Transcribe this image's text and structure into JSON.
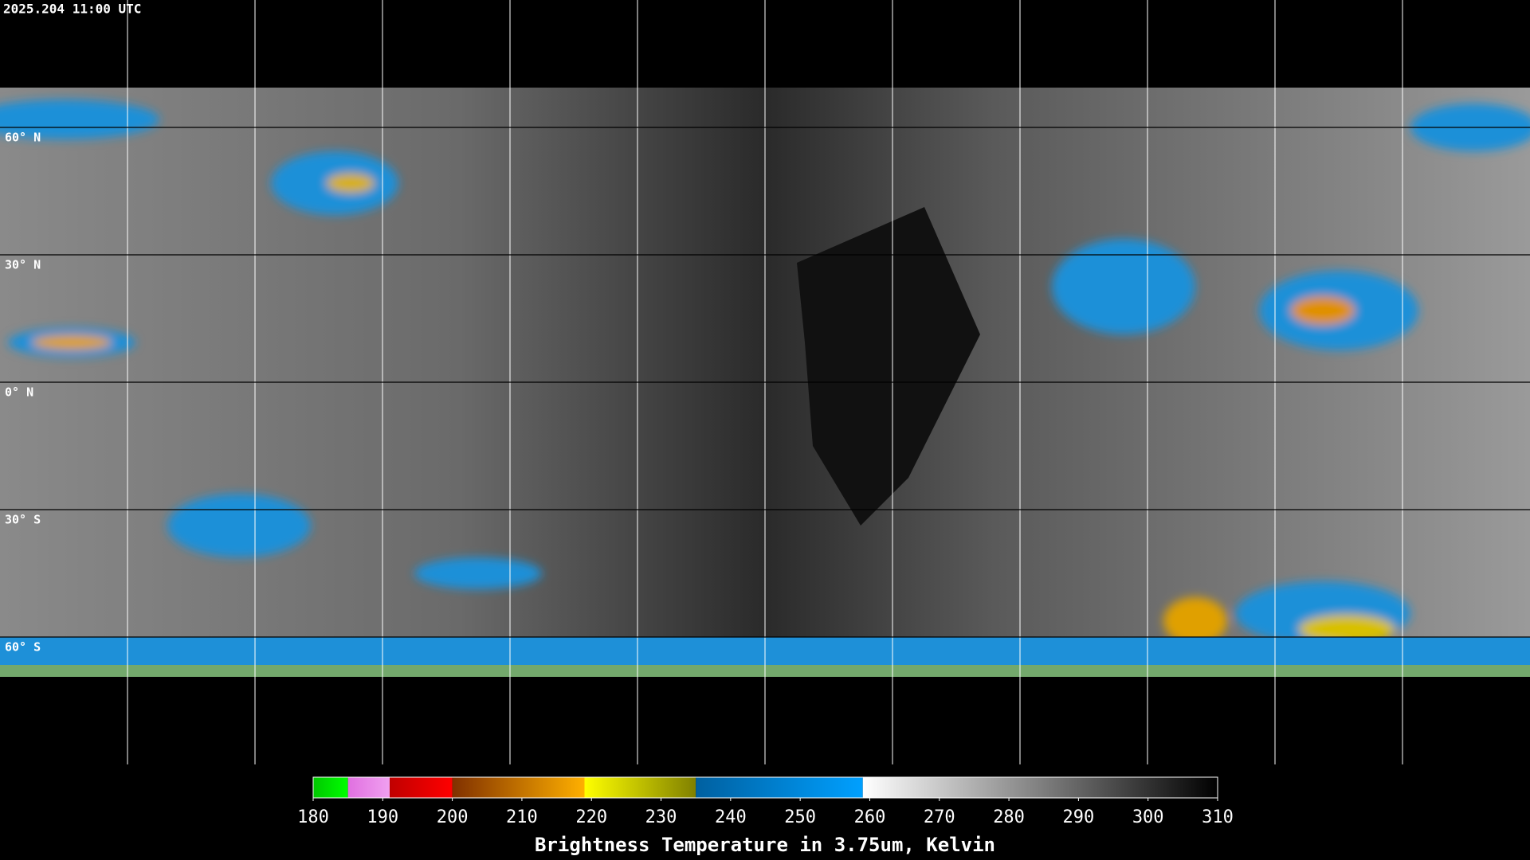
{
  "header": {
    "timestamp": "2025.204 11:00 UTC"
  },
  "map": {
    "latitudes": [
      {
        "value": 60,
        "label": "60° N"
      },
      {
        "value": 30,
        "label": "30° N"
      },
      {
        "value": 0,
        "label": "0° N"
      },
      {
        "value": -30,
        "label": "30° S"
      },
      {
        "value": -60,
        "label": "60° S"
      }
    ]
  },
  "colorbar": {
    "title": "Brightness Temperature in 3.75um, Kelvin",
    "range": [
      180,
      310
    ],
    "ticks": [
      180,
      190,
      200,
      210,
      220,
      230,
      240,
      250,
      260,
      270,
      280,
      290,
      300,
      310
    ],
    "segments": [
      {
        "from": 180,
        "to": 185,
        "colors": [
          "#00c800",
          "#00ff00"
        ]
      },
      {
        "from": 185,
        "to": 191,
        "colors": [
          "#e070e0",
          "#f0a0f0"
        ]
      },
      {
        "from": 191,
        "to": 200,
        "colors": [
          "#c00000",
          "#ff0000"
        ]
      },
      {
        "from": 200,
        "to": 219,
        "colors": [
          "#803000",
          "#ffb000"
        ]
      },
      {
        "from": 219,
        "to": 235,
        "colors": [
          "#ffff00",
          "#808000"
        ]
      },
      {
        "from": 235,
        "to": 259,
        "colors": [
          "#0060a0",
          "#00a0ff"
        ]
      },
      {
        "from": 259,
        "to": 310,
        "colors": [
          "#ffffff",
          "#000000"
        ]
      }
    ]
  }
}
